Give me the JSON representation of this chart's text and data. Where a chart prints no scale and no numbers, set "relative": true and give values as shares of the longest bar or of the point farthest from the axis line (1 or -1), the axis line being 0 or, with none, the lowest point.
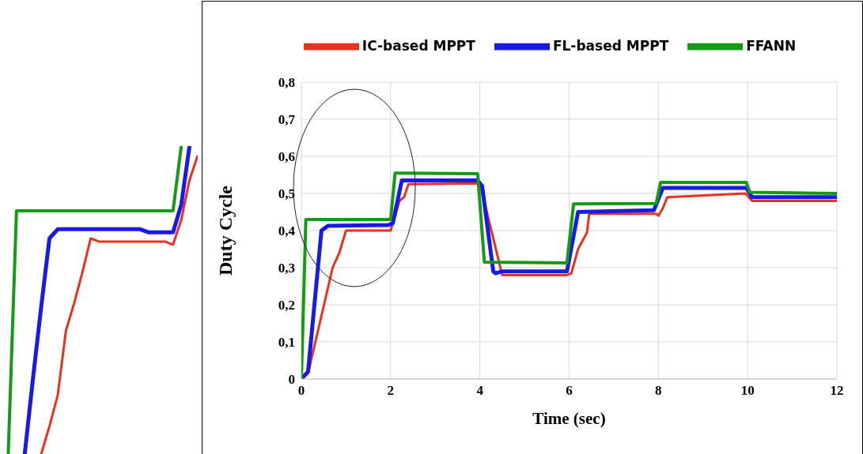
{
  "chart_data": [
    {
      "type": "line",
      "relative": true,
      "categories": [
        null,
        null,
        null,
        null,
        null,
        null,
        null,
        null,
        null,
        null,
        null,
        null,
        null,
        null,
        null,
        null,
        null,
        null,
        null,
        null,
        null,
        null,
        null,
        null,
        null
      ],
      "series": [
        {
          "color": "#e8321e",
          "values": [
            null,
            null,
            null,
            null,
            null,
            0,
            0.09,
            0.19,
            0.4,
            0.49,
            0.59,
            0.7,
            0.69,
            0.69,
            0.69,
            0.69,
            0.69,
            0.69,
            0.69,
            0.69,
            0.69,
            0.68,
            0.76,
            0.89,
            0.97
          ]
        },
        {
          "color": "#1a1ae6",
          "values": [
            null,
            null,
            null,
            0,
            0.245,
            0.478,
            0.7,
            0.73,
            0.73,
            0.73,
            0.73,
            0.73,
            0.73,
            0.73,
            0.73,
            0.73,
            0.73,
            0.73,
            0.72,
            0.72,
            0.72,
            0.72,
            0.81,
            1,
            null
          ]
        },
        {
          "color": "#169a16",
          "values": [
            null,
            0,
            0.79,
            0.79,
            0.79,
            0.79,
            0.79,
            0.79,
            0.79,
            0.79,
            0.79,
            0.79,
            0.79,
            0.79,
            0.79,
            0.79,
            0.79,
            0.79,
            0.79,
            0.79,
            0.79,
            0.79,
            1,
            null,
            null
          ]
        }
      ]
    },
    {
      "type": "line",
      "xlabel": "Time (sec)",
      "ylabel": "Duty Cycle",
      "xlim": [
        0,
        12
      ],
      "xticks": [
        0,
        2,
        4,
        6,
        8,
        10,
        12
      ],
      "ylim": [
        0,
        0.8
      ],
      "yticks": [
        {
          "value": 0,
          "label": "0"
        },
        {
          "value": 0.1,
          "label": "0,1"
        },
        {
          "value": 0.2,
          "label": "0,2"
        },
        {
          "value": 0.3,
          "label": "0,3"
        },
        {
          "value": 0.4,
          "label": "0,4"
        },
        {
          "value": 0.5,
          "label": "0,5"
        },
        {
          "value": 0.6,
          "label": "0,6"
        },
        {
          "value": 0.7,
          "label": "0,7"
        },
        {
          "value": 0.8,
          "label": "0,8"
        }
      ],
      "grid": true,
      "legend": "top",
      "series": [
        {
          "name": "IC-based MPPT",
          "color": "#e8321e",
          "x": [
            0,
            0.15,
            0.7,
            0.85,
            1.0,
            2.0,
            2.2,
            2.3,
            2.4,
            4.0,
            4.5,
            5.95,
            6.05,
            6.2,
            6.4,
            6.45,
            7.95,
            8.0,
            8.1,
            8.2,
            9.95,
            10.1,
            12
          ],
          "values": [
            0,
            0.015,
            0.3,
            0.34,
            0.4,
            0.4,
            0.48,
            0.49,
            0.525,
            0.527,
            0.28,
            0.28,
            0.285,
            0.35,
            0.395,
            0.445,
            0.445,
            0.44,
            0.46,
            0.49,
            0.5,
            0.48,
            0.48
          ]
        },
        {
          "name": "FL-based MPPT",
          "color": "#1a1ae6",
          "x": [
            0,
            0.15,
            0.45,
            0.6,
            1.95,
            2.05,
            2.25,
            3.95,
            4.05,
            4.3,
            4.35,
            4.5,
            5.95,
            6.2,
            7.9,
            8.1,
            9.97,
            10.1,
            12
          ],
          "values": [
            0,
            0.02,
            0.4,
            0.413,
            0.415,
            0.42,
            0.535,
            0.535,
            0.52,
            0.29,
            0.285,
            0.29,
            0.29,
            0.45,
            0.455,
            0.515,
            0.515,
            0.49,
            0.49
          ]
        },
        {
          "name": "FFANN",
          "color": "#169a16",
          "x": [
            0,
            0.1,
            2.0,
            2.1,
            3.95,
            4.1,
            5.95,
            6.1,
            7.95,
            8.05,
            9.97,
            10.05,
            12
          ],
          "values": [
            0,
            0.43,
            0.43,
            0.555,
            0.553,
            0.315,
            0.313,
            0.472,
            0.473,
            0.53,
            0.53,
            0.503,
            0.5
          ]
        }
      ]
    }
  ]
}
